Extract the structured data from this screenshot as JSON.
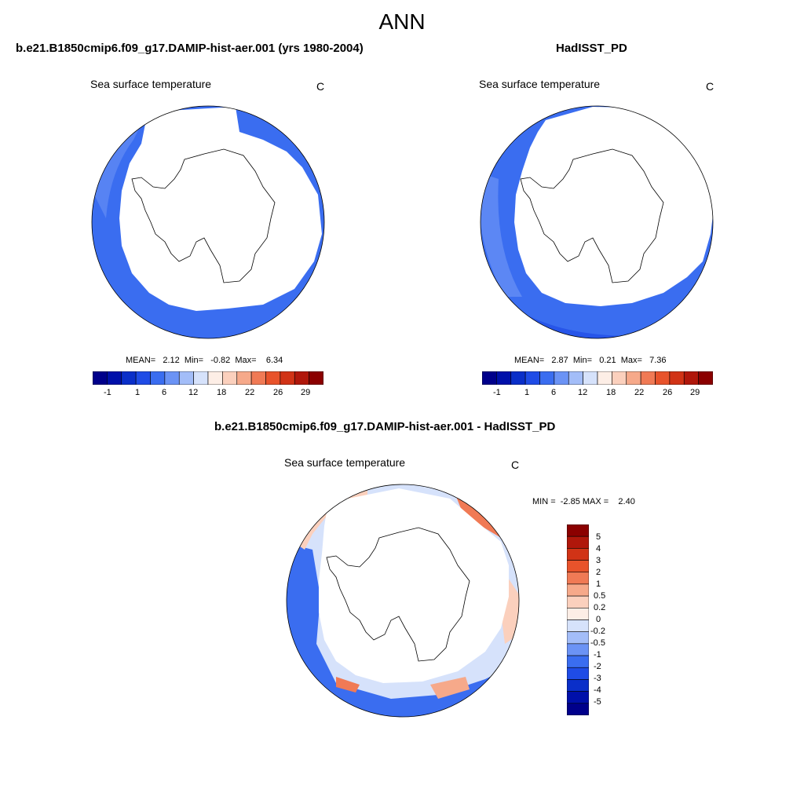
{
  "figure": {
    "title": "ANN"
  },
  "colors": {
    "palette": [
      "#00008b",
      "#0010aa",
      "#0a2fc9",
      "#1f4ce6",
      "#3a6df0",
      "#6b93f5",
      "#a3bdf8",
      "#d6e2fb",
      "#fdeee6",
      "#fbd0bd",
      "#f6a98a",
      "#f07a55",
      "#e8532b",
      "#d13316",
      "#b0170b",
      "#8b0000"
    ],
    "ocean_deep": "#1f4ce6",
    "ocean_mid": "#3a6df0",
    "ocean_light": "#6b93f5",
    "land": "#ffffff"
  },
  "panels": {
    "model": {
      "title": "b.e21.B1850cmip6.f09_g17.DAMIP-hist-aer.001 (yrs 1980-2004)",
      "variable": "Sea surface temperature",
      "units": "C",
      "stats": "MEAN=   2.12  Min=   -0.82  Max=    6.34",
      "colorbar_ticks": [
        "-1",
        "1",
        "6",
        "12",
        "18",
        "22",
        "26",
        "29"
      ]
    },
    "obs": {
      "title": "HadISST_PD",
      "variable": "Sea surface temperature",
      "units": "C",
      "stats": "MEAN=   2.87  Min=   0.21  Max=   7.36",
      "colorbar_ticks": [
        "-1",
        "1",
        "6",
        "12",
        "18",
        "22",
        "26",
        "29"
      ]
    },
    "diff": {
      "title": "b.e21.B1850cmip6.f09_g17.DAMIP-hist-aer.001 - HadISST_PD",
      "variable": "Sea surface temperature",
      "units": "C",
      "stats": "MIN =  -2.85 MAX =    2.40",
      "colorbar_ticks": [
        "5",
        "4",
        "3",
        "2",
        "1",
        "0.5",
        "0.2",
        "0",
        "-0.2",
        "-0.5",
        "-1",
        "-2",
        "-3",
        "-4",
        "-5"
      ]
    }
  }
}
